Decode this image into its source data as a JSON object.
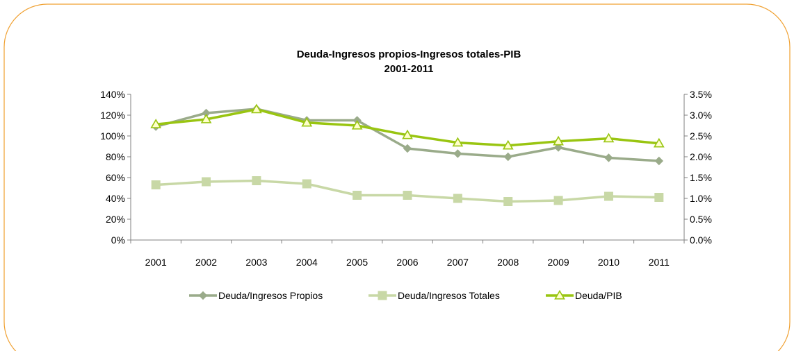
{
  "chart_data": {
    "type": "line",
    "title": "Deuda-Ingresos propios-Ingresos totales-PIB",
    "subtitle": "2001-2011",
    "categories": [
      "2001",
      "2002",
      "2003",
      "2004",
      "2005",
      "2006",
      "2007",
      "2008",
      "2009",
      "2010",
      "2011"
    ],
    "y_left": {
      "ylim": [
        0,
        140
      ],
      "ticks": [
        0,
        20,
        40,
        60,
        80,
        100,
        120,
        140
      ],
      "tick_labels": [
        "0%",
        "20%",
        "40%",
        "60%",
        "80%",
        "100%",
        "120%",
        "140%"
      ]
    },
    "y_right": {
      "ylim": [
        0,
        3.5
      ],
      "ticks": [
        0,
        0.5,
        1.0,
        1.5,
        2.0,
        2.5,
        3.0,
        3.5
      ],
      "tick_labels": [
        "0.0%",
        "0.5%",
        "1.0%",
        "1.5%",
        "2.0%",
        "2.5%",
        "3.0%",
        "3.5%"
      ]
    },
    "series": [
      {
        "name": "Deuda/Ingresos Propios",
        "axis": "left",
        "marker": "diamond",
        "color": "#9aab8a",
        "values": [
          109,
          122,
          126,
          115,
          115,
          88,
          83,
          80,
          89,
          79,
          76
        ]
      },
      {
        "name": "Deuda/Ingresos Totales",
        "axis": "left",
        "marker": "square",
        "color": "#c8d8a6",
        "values": [
          53,
          56,
          57,
          54,
          43,
          43,
          40,
          37,
          38,
          42,
          41
        ]
      },
      {
        "name": "Deuda/PIB",
        "axis": "right",
        "marker": "triangle",
        "color": "#99c511",
        "values": [
          2.78,
          2.9,
          3.14,
          2.82,
          2.75,
          2.52,
          2.34,
          2.27,
          2.37,
          2.44,
          2.32
        ]
      }
    ],
    "legend": "bottom",
    "grid": false
  },
  "colors": {
    "frame": "#f0a030",
    "axis": "#808080"
  }
}
